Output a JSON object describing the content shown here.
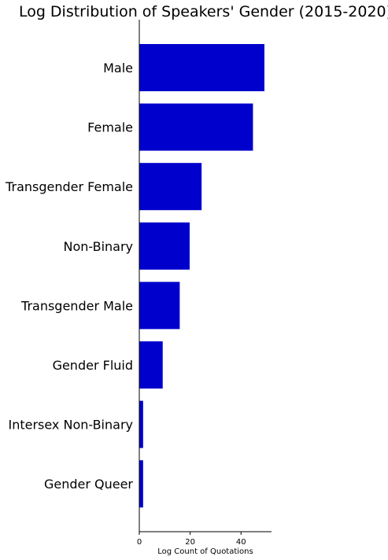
{
  "chart_data": {
    "type": "bar",
    "orientation": "horizontal",
    "title": "Log Distribution of Speakers' Gender (2015-2020)",
    "xlabel": "Log Count of Quotations",
    "ylabel": "",
    "xlim": [
      0,
      52
    ],
    "xticks": [
      0,
      20,
      40
    ],
    "grid": false,
    "bar_color": "#0000cc",
    "categories": [
      "Male",
      "Female",
      "Transgender Female",
      "Non-Binary",
      "Transgender Male",
      "Gender Fluid",
      "Intersex Non-Binary",
      "Gender Queer"
    ],
    "values": [
      49.2,
      44.7,
      24.5,
      19.8,
      15.9,
      9.2,
      1.5,
      1.5
    ]
  }
}
